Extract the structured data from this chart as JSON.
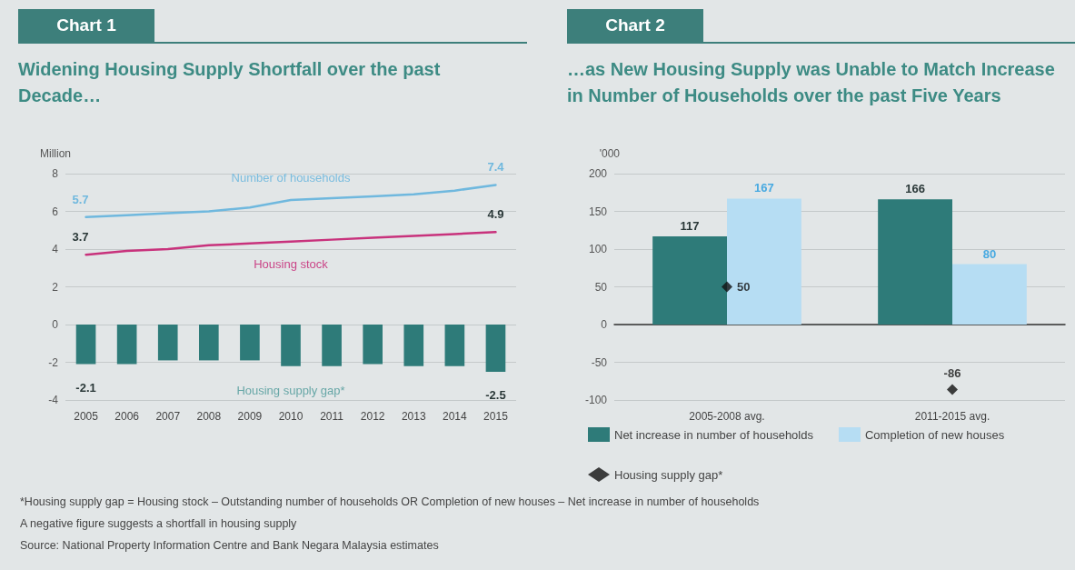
{
  "chart_data": [
    {
      "type": "line",
      "title": "Chart 1",
      "subtitle": "Widening Housing Supply Shortfall over the past Decade…",
      "ylabel": "Million",
      "categories": [
        "2005",
        "2006",
        "2007",
        "2008",
        "2009",
        "2010",
        "2011",
        "2012",
        "2013",
        "2014",
        "2015"
      ],
      "series": [
        {
          "name": "Number of households",
          "color": "#6fb8de",
          "values": [
            5.7,
            5.8,
            5.9,
            6.0,
            6.2,
            6.6,
            6.7,
            6.8,
            6.9,
            7.1,
            7.4
          ],
          "value_labels": [
            "5.7",
            null,
            null,
            null,
            null,
            null,
            null,
            null,
            null,
            null,
            "7.4"
          ]
        },
        {
          "name": "Housing stock",
          "color": "#c8327c",
          "values": [
            3.7,
            3.9,
            4.0,
            4.2,
            4.3,
            4.4,
            4.5,
            4.6,
            4.7,
            4.8,
            4.9
          ],
          "value_labels": [
            "3.7",
            null,
            null,
            null,
            null,
            null,
            null,
            null,
            null,
            null,
            "4.9"
          ]
        },
        {
          "name": "Housing supply gap*",
          "type": "bar",
          "color": "#2e7b79",
          "values": [
            -2.1,
            -2.1,
            -1.9,
            -1.9,
            -1.9,
            -2.2,
            -2.2,
            -2.1,
            -2.2,
            -2.2,
            -2.5
          ],
          "value_labels": [
            "-2.1",
            null,
            null,
            null,
            null,
            null,
            null,
            null,
            null,
            null,
            "-2.5"
          ]
        }
      ],
      "ylim": [
        -4,
        8
      ],
      "yticks": [
        -4,
        -2,
        0,
        2,
        4,
        6,
        8
      ],
      "grid": "y",
      "legend": false,
      "marker": "none",
      "line_style": "solid",
      "annotations": [
        "*Housing supply gap = Housing stock – Outstanding number of households OR Completion of new houses – Net increase in number of households",
        "A negative figure suggests a shortfall in housing supply",
        "Source: National Property Information Centre and Bank Negara Malaysia estimates"
      ]
    },
    {
      "type": "bar",
      "title": "Chart 2",
      "subtitle": "…as New Housing Supply was Unable to Match Increase in Number of Households over the past Five Years",
      "ylabel": "'000",
      "categories": [
        "2005-2008 avg.",
        "2011-2015 avg."
      ],
      "series": [
        {
          "name": "Net increase in number of households",
          "color": "#2e7b79",
          "values": [
            117,
            166
          ]
        },
        {
          "name": "Completion of new houses",
          "color": "#b6ddf3",
          "values": [
            167,
            80
          ]
        },
        {
          "name": "Housing supply gap*",
          "type": "scatter",
          "marker": "diamond",
          "color": "#111111",
          "x": [
            "2005-2008 avg.",
            "2011-2015 avg."
          ],
          "values": [
            50,
            -86
          ]
        }
      ],
      "ylim": [
        -100,
        200
      ],
      "yticks": [
        -100,
        -50,
        0,
        50,
        100,
        150,
        200
      ],
      "grid": "y",
      "legend": "bottom",
      "data_labels": true
    }
  ]
}
